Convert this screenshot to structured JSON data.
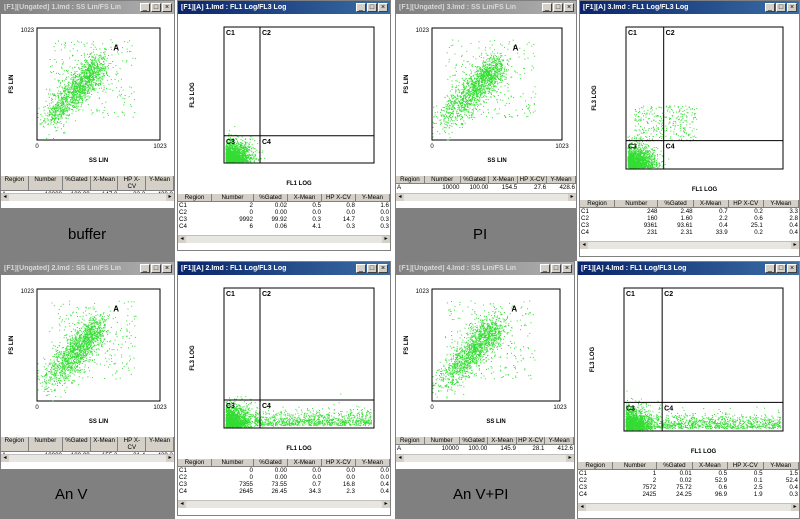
{
  "chart_data": [
    {
      "type": "scatter",
      "window_title": "[F1][Ungated] 1.lmd : SS Lin/FS Lin",
      "xlabel": "SS LIN",
      "ylabel": "FS LIN",
      "x_ticks": [
        "0",
        "1023"
      ],
      "y_ticks": [
        "0",
        "1023"
      ],
      "region_label": "A",
      "caption": "buffer",
      "color": "#33dd33",
      "table": {
        "headers": [
          "Region",
          "Number",
          "%Gated",
          "X-Mean",
          "HP X-CV",
          "Y-Mean"
        ],
        "rows": [
          [
            "A",
            "10000",
            "100.00",
            "147.0",
            "23.2",
            "430.9"
          ]
        ]
      }
    },
    {
      "type": "scatter",
      "window_title": "[F1][A] 1.lmd : FL1 Log/FL3 Log",
      "xlabel": "FL1 LOG",
      "ylabel": "FL3 LOG",
      "quadrants": [
        "C1",
        "C2",
        "C3",
        "C4"
      ],
      "color": "#33dd33",
      "table": {
        "headers": [
          "Region",
          "Number",
          "%Gated",
          "X-Mean",
          "HP X-CV",
          "Y-Mean"
        ],
        "rows": [
          [
            "C1",
            "2",
            "0.02",
            "0.5",
            "0.8",
            "1.6"
          ],
          [
            "C2",
            "0",
            "0.00",
            "0.0",
            "0.0",
            "0.0"
          ],
          [
            "C3",
            "9992",
            "99.92",
            "0.3",
            "14.7",
            "0.3"
          ],
          [
            "C4",
            "6",
            "0.06",
            "4.1",
            "0.3",
            "0.3"
          ]
        ]
      }
    },
    {
      "type": "scatter",
      "window_title": "[F1][Ungated] 3.lmd : SS Lin/FS Lin",
      "xlabel": "SS LIN",
      "ylabel": "FS LIN",
      "x_ticks": [
        "0",
        "1023"
      ],
      "y_ticks": [
        "0",
        "1023"
      ],
      "region_label": "A",
      "caption": "PI",
      "color": "#33dd33",
      "table": {
        "headers": [
          "Region",
          "Number",
          "%Gated",
          "X-Mean",
          "HP X-CV",
          "Y-Mean"
        ],
        "rows": [
          [
            "A",
            "10000",
            "100.00",
            "154.5",
            "27.6",
            "428.6"
          ]
        ]
      }
    },
    {
      "type": "scatter",
      "window_title": "[F1][A] 3.lmd : FL1 Log/FL3 Log",
      "xlabel": "FL1 LOG",
      "ylabel": "FL3 LOG",
      "quadrants": [
        "C1",
        "C2",
        "C3",
        "C4"
      ],
      "color": "#33dd33",
      "table": {
        "headers": [
          "Region",
          "Number",
          "%Gated",
          "X-Mean",
          "HP X-CV",
          "Y-Mean"
        ],
        "rows": [
          [
            "C1",
            "248",
            "2.48",
            "0.7",
            "0.2",
            "3.3"
          ],
          [
            "C2",
            "160",
            "1.60",
            "2.2",
            "0.6",
            "2.8"
          ],
          [
            "C3",
            "9361",
            "93.61",
            "0.4",
            "25.1",
            "0.4"
          ],
          [
            "C4",
            "231",
            "2.31",
            "33.9",
            "0.2",
            "0.4"
          ]
        ]
      }
    },
    {
      "type": "scatter",
      "window_title": "[F1][Ungated] 2.lmd : SS Lin/FS Lin",
      "xlabel": "SS LIN",
      "ylabel": "FS LIN",
      "x_ticks": [
        "0",
        "1023"
      ],
      "y_ticks": [
        "0",
        "1023"
      ],
      "region_label": "A",
      "caption": "An V",
      "color": "#33dd33",
      "table": {
        "headers": [
          "Region",
          "Number",
          "%Gated",
          "X-Mean",
          "HP X-CV",
          "Y-Mean"
        ],
        "rows": [
          [
            "A",
            "10000",
            "100.00",
            "155.2",
            "21.4",
            "439.3"
          ]
        ]
      }
    },
    {
      "type": "scatter",
      "window_title": "[F1][A] 2.lmd : FL1 Log/FL3 Log",
      "xlabel": "FL1 LOG",
      "ylabel": "FL3 LOG",
      "quadrants": [
        "C1",
        "C2",
        "C3",
        "C4"
      ],
      "color": "#33dd33",
      "table": {
        "headers": [
          "Region",
          "Number",
          "%Gated",
          "X-Mean",
          "HP X-CV",
          "Y-Mean"
        ],
        "rows": [
          [
            "C1",
            "0",
            "0.00",
            "0.0",
            "0.0",
            "0.0"
          ],
          [
            "C2",
            "0",
            "0.00",
            "0.0",
            "0.0",
            "0.0"
          ],
          [
            "C3",
            "7355",
            "73.55",
            "0.7",
            "16.8",
            "0.4"
          ],
          [
            "C4",
            "2645",
            "26.45",
            "34.3",
            "2.3",
            "0.4"
          ]
        ]
      }
    },
    {
      "type": "scatter",
      "window_title": "[F1][Ungated] 4.lmd : SS Lin/FS Lin",
      "xlabel": "SS LIN",
      "ylabel": "FS LIN",
      "x_ticks": [
        "0",
        "1023"
      ],
      "y_ticks": [
        "0",
        "1023"
      ],
      "region_label": "A",
      "caption": "An V+PI",
      "color": "#33dd33",
      "table": {
        "headers": [
          "Region",
          "Number",
          "%Gated",
          "X-Mean",
          "HP X-CV",
          "Y-Mean"
        ],
        "rows": [
          [
            "A",
            "10000",
            "100.00",
            "145.9",
            "28.1",
            "412.6"
          ]
        ]
      }
    },
    {
      "type": "scatter",
      "window_title": "[F1][A] 4.lmd : FL1 Log/FL3 Log",
      "xlabel": "FL1 LOG",
      "ylabel": "FL3 LOG",
      "quadrants": [
        "C1",
        "C2",
        "C3",
        "C4"
      ],
      "color": "#33dd33",
      "table": {
        "headers": [
          "Region",
          "Number",
          "%Gated",
          "X-Mean",
          "HP X-CV",
          "Y-Mean"
        ],
        "rows": [
          [
            "C1",
            "1",
            "0.01",
            "0.5",
            "0.5",
            "1.5"
          ],
          [
            "C2",
            "2",
            "0.02",
            "52.9",
            "0.1",
            "52.4"
          ],
          [
            "C3",
            "7572",
            "75.72",
            "0.6",
            "2.5",
            "0.4"
          ],
          [
            "C4",
            "2425",
            "24.25",
            "96.9",
            "1.9",
            "0.3"
          ]
        ]
      }
    }
  ]
}
